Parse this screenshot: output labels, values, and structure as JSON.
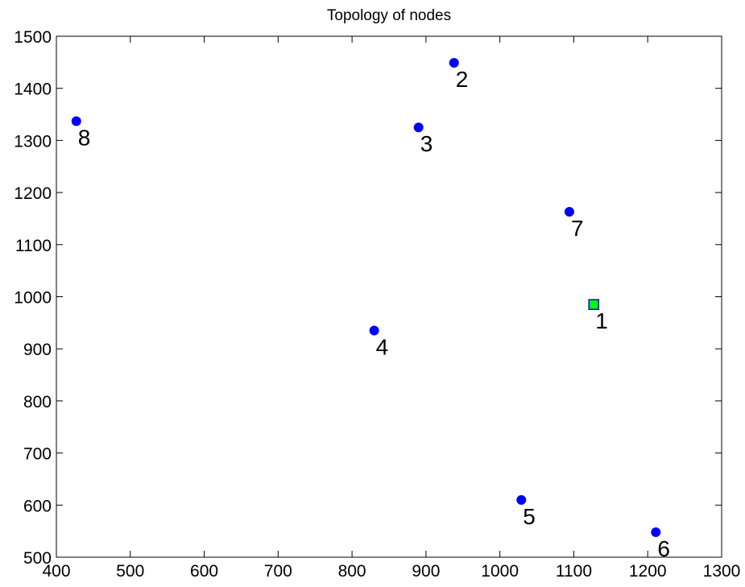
{
  "chart_data": {
    "type": "scatter",
    "title": "Topology of nodes",
    "xlabel": "",
    "ylabel": "",
    "xlim": [
      400,
      1300
    ],
    "ylim": [
      500,
      1500
    ],
    "xticks": [
      400,
      500,
      600,
      700,
      800,
      900,
      1000,
      1100,
      1200,
      1300
    ],
    "yticks": [
      500,
      600,
      700,
      800,
      900,
      1000,
      1100,
      1200,
      1300,
      1400,
      1500
    ],
    "grid": false,
    "points": [
      {
        "label": "1",
        "x": 1127,
        "y": 985,
        "marker": "square",
        "color": "#00ff00",
        "edge": "#0000ff"
      },
      {
        "label": "2",
        "x": 938,
        "y": 1449,
        "marker": "circle",
        "color": "#0000ff"
      },
      {
        "label": "3",
        "x": 890,
        "y": 1325,
        "marker": "circle",
        "color": "#0000ff"
      },
      {
        "label": "4",
        "x": 830,
        "y": 935,
        "marker": "circle",
        "color": "#0000ff"
      },
      {
        "label": "5",
        "x": 1029,
        "y": 610,
        "marker": "circle",
        "color": "#0000ff"
      },
      {
        "label": "6",
        "x": 1211,
        "y": 548,
        "marker": "circle",
        "color": "#0000ff"
      },
      {
        "label": "7",
        "x": 1094,
        "y": 1163,
        "marker": "circle",
        "color": "#0000ff"
      },
      {
        "label": "8",
        "x": 427,
        "y": 1337,
        "marker": "circle",
        "color": "#0000ff"
      }
    ]
  }
}
